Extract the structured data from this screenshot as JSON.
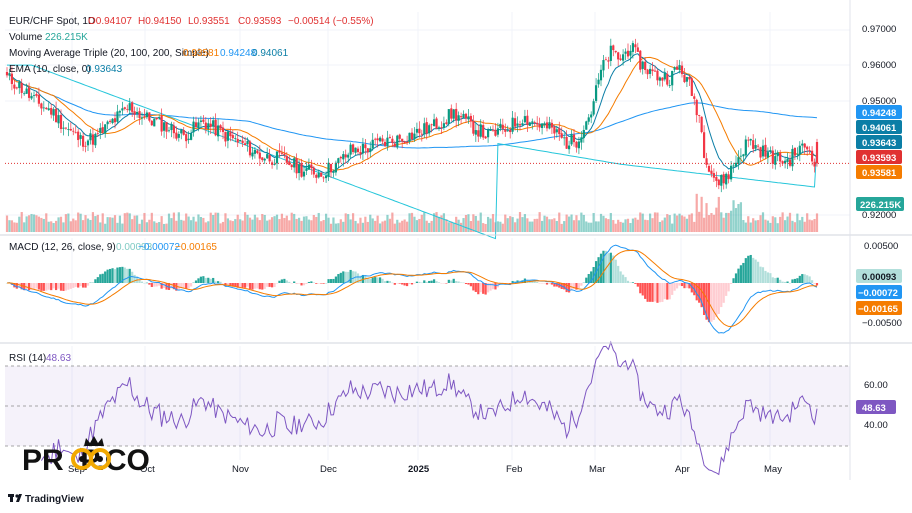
{
  "header": {
    "symbol": "EUR/CHF Spot, 1D",
    "ohlc": {
      "o": "O0.94107",
      "h": "H0.94150",
      "l": "L0.93551",
      "c": "C0.93593",
      "chg": "−0.00514 (−0.55%)"
    },
    "volume_label": "Volume",
    "volume_value": "226.215K",
    "ma_label": "Moving Average Triple (20, 100, 200, Simple)",
    "ma_values": [
      "0.93581",
      "0.94248",
      "0.94061"
    ],
    "ema_label": "EMA (10, close, 0)",
    "ema_value": "0.93643",
    "macd_label": "MACD (12, 26, close, 9)",
    "macd_values": [
      "0.00093",
      "−0.00072",
      "−0.00165"
    ],
    "rsi_label": "RSI (14)",
    "rsi_value": "48.63"
  },
  "price_axis": {
    "ticks": [
      "0.97000",
      "0.96000",
      "0.95000",
      "0.92000"
    ],
    "tags": [
      {
        "text": "0.94248",
        "color": "#2196f3"
      },
      {
        "text": "0.94061",
        "color": "#0b7ea6"
      },
      {
        "text": "0.93643",
        "color": "#0b7ea6"
      },
      {
        "text": "0.93593",
        "color": "#e03131"
      },
      {
        "text": "0.93581",
        "color": "#f57c00"
      }
    ],
    "volume_tag": {
      "text": "226.215K",
      "color": "#26a69a"
    }
  },
  "macd_axis": {
    "ticks": [
      "0.00500",
      "−0.00500"
    ],
    "tags": [
      {
        "text": "0.00093",
        "color": "#b2dfdb"
      },
      {
        "text": "−0.00072",
        "color": "#2196f3"
      },
      {
        "text": "−0.00165",
        "color": "#f57c00"
      }
    ]
  },
  "rsi_axis": {
    "ticks": [
      "60.00",
      "40.00"
    ],
    "tag": {
      "text": "48.63",
      "color": "#7e57c2"
    }
  },
  "time_axis": [
    "Sep",
    "Oct",
    "Nov",
    "Dec",
    "2025",
    "Feb",
    "Mar",
    "Apr",
    "May"
  ],
  "watermark": "PR  P.CO",
  "brand": "TradingView",
  "chart_data": {
    "type": "candlestick",
    "symbol": "EUR/CHF",
    "timeframe": "1D",
    "y_range": [
      0.9195,
      0.9715
    ],
    "close_anchors": [
      [
        0,
        0.9565
      ],
      [
        5,
        0.9545
      ],
      [
        12,
        0.9505
      ],
      [
        18,
        0.9485
      ],
      [
        24,
        0.9445
      ],
      [
        30,
        0.9415
      ],
      [
        36,
        0.942
      ],
      [
        42,
        0.9455
      ],
      [
        50,
        0.9495
      ],
      [
        56,
        0.947
      ],
      [
        64,
        0.945
      ],
      [
        72,
        0.9425
      ],
      [
        80,
        0.946
      ],
      [
        88,
        0.943
      ],
      [
        96,
        0.9405
      ],
      [
        104,
        0.9375
      ],
      [
        112,
        0.937
      ],
      [
        120,
        0.9345
      ],
      [
        128,
        0.9335
      ],
      [
        136,
        0.9365
      ],
      [
        140,
        0.939
      ],
      [
        146,
        0.9395
      ],
      [
        152,
        0.941
      ],
      [
        158,
        0.9415
      ],
      [
        166,
        0.943
      ],
      [
        174,
        0.945
      ],
      [
        182,
        0.948
      ],
      [
        188,
        0.9455
      ],
      [
        196,
        0.9425
      ],
      [
        204,
        0.9445
      ],
      [
        210,
        0.947
      ],
      [
        216,
        0.9455
      ],
      [
        222,
        0.944
      ],
      [
        228,
        0.941
      ],
      [
        232,
        0.9415
      ],
      [
        238,
        0.9485
      ],
      [
        242,
        0.958
      ],
      [
        246,
        0.9625
      ],
      [
        250,
        0.961
      ],
      [
        254,
        0.964
      ],
      [
        258,
        0.96
      ],
      [
        264,
        0.957
      ],
      [
        270,
        0.9565
      ],
      [
        274,
        0.959
      ],
      [
        278,
        0.9545
      ],
      [
        282,
        0.9475
      ],
      [
        284,
        0.939
      ],
      [
        287,
        0.934
      ],
      [
        290,
        0.931
      ],
      [
        294,
        0.9335
      ],
      [
        298,
        0.9375
      ],
      [
        302,
        0.9415
      ],
      [
        306,
        0.9395
      ],
      [
        310,
        0.938
      ],
      [
        314,
        0.937
      ],
      [
        318,
        0.9365
      ],
      [
        322,
        0.939
      ],
      [
        326,
        0.94
      ],
      [
        330,
        0.9359
      ]
    ],
    "last": {
      "open": 0.94107,
      "high": 0.9415,
      "low": 0.93551,
      "close": 0.93593,
      "change": -0.00514,
      "change_pct": -0.55
    },
    "ma20_last": 0.93581,
    "ma100_last": 0.94248,
    "ma200_last": 0.94061,
    "ema10_last": 0.93643,
    "volume_last": "226.215K",
    "macd": {
      "hist": 0.00093,
      "macd": -0.00072,
      "signal": -0.00165
    },
    "rsi": {
      "last": 48.63,
      "bands": [
        30,
        70
      ]
    }
  }
}
